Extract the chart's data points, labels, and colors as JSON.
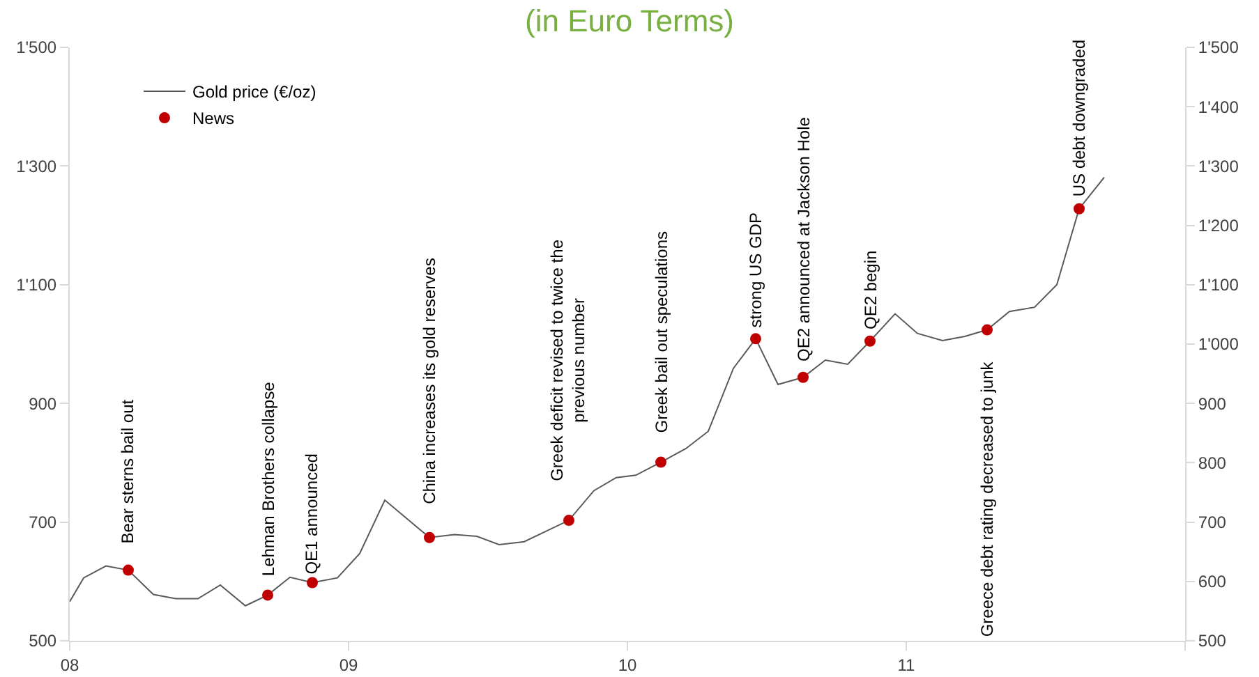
{
  "chart_data": {
    "type": "line",
    "title": "(in Euro Terms)",
    "xlim": [
      2008,
      2012
    ],
    "xticks": [
      {
        "value": 2008,
        "label": "08"
      },
      {
        "value": 2009,
        "label": "09"
      },
      {
        "value": 2010,
        "label": "10"
      },
      {
        "value": 2011,
        "label": "11"
      },
      {
        "value": 2012,
        "label": null
      }
    ],
    "ylim": [
      500,
      1500
    ],
    "yticks": [
      {
        "value": 500,
        "label": "500"
      },
      {
        "value": 700,
        "label": "700"
      },
      {
        "value": 900,
        "label": "900"
      },
      {
        "value": 1100,
        "label": "1'100"
      },
      {
        "value": 1300,
        "label": "1'300"
      },
      {
        "value": 1500,
        "label": "1'500"
      }
    ],
    "y2lim": [
      500,
      1500
    ],
    "y2ticks": [
      {
        "value": 500,
        "label": "500"
      },
      {
        "value": 600,
        "label": "600"
      },
      {
        "value": 700,
        "label": "700"
      },
      {
        "value": 800,
        "label": "800"
      },
      {
        "value": 900,
        "label": "900"
      },
      {
        "value": 1000,
        "label": "1'000"
      },
      {
        "value": 1100,
        "label": "1'100"
      },
      {
        "value": 1200,
        "label": "1'200"
      },
      {
        "value": 1300,
        "label": "1'300"
      },
      {
        "value": 1400,
        "label": "1'400"
      },
      {
        "value": 1500,
        "label": "1'500"
      }
    ],
    "grid": false,
    "legend": "top left",
    "series": [
      {
        "name": "Gold price (€/oz)",
        "color": "#595959",
        "marker": "none",
        "x": [
          2008.0,
          2008.05,
          2008.13,
          2008.21,
          2008.3,
          2008.38,
          2008.46,
          2008.54,
          2008.63,
          2008.71,
          2008.79,
          2008.87,
          2008.96,
          2009.04,
          2009.13,
          2009.29,
          2009.38,
          2009.46,
          2009.54,
          2009.63,
          2009.71,
          2009.79,
          2009.88,
          2009.96,
          2010.03,
          2010.12,
          2010.21,
          2010.29,
          2010.38,
          2010.46,
          2010.54,
          2010.63,
          2010.71,
          2010.79,
          2010.87,
          2010.96,
          2011.04,
          2011.13,
          2011.21,
          2011.29,
          2011.37,
          2011.46,
          2011.54,
          2011.62,
          2011.71
        ],
        "values": [
          566,
          606,
          626,
          619,
          578,
          571,
          571,
          594,
          559,
          577,
          607,
          598,
          606,
          647,
          737,
          674,
          679,
          676,
          662,
          667,
          685,
          703,
          753,
          775,
          779,
          801,
          824,
          853,
          959,
          1009,
          932,
          944,
          973,
          966,
          1005,
          1051,
          1018,
          1006,
          1013,
          1024,
          1055,
          1062,
          1100,
          1228,
          1281
        ]
      },
      {
        "name": "News",
        "type": "scatter",
        "color": "#c00000",
        "marker": "circle",
        "x": [
          2008.21,
          2008.71,
          2008.87,
          2009.29,
          2009.79,
          2010.12,
          2010.46,
          2010.63,
          2010.87,
          2011.29,
          2011.62
        ],
        "values": [
          619,
          577,
          598,
          674,
          703,
          801,
          1009,
          944,
          1005,
          1024,
          1228
        ]
      }
    ],
    "annotations": [
      {
        "text": "Bear sterns bail out",
        "x": 2008.21,
        "y": 619
      },
      {
        "text": "Lehman Brothers collapse",
        "x": 2008.71,
        "y": 577
      },
      {
        "text": "QE1 announced",
        "x": 2008.87,
        "y": 598
      },
      {
        "text": "China increases its gold reserves",
        "x": 2009.29,
        "y": 674
      },
      {
        "text": "Greek deficit revised to twice the\nprevious number",
        "x": 2009.79,
        "y": 703
      },
      {
        "text": "Greek bail out speculations",
        "x": 2010.12,
        "y": 801
      },
      {
        "text": "strong US GDP",
        "x": 2010.46,
        "y": 1009
      },
      {
        "text": "QE2 announced at Jackson Hole",
        "x": 2010.63,
        "y": 944
      },
      {
        "text": "QE2 begin",
        "x": 2010.87,
        "y": 1005
      },
      {
        "text": "Greece debt rating decreased to junk",
        "x": 2011.29,
        "y": 1024
      },
      {
        "text": "US debt downgraded",
        "x": 2011.62,
        "y": 1228
      }
    ]
  }
}
